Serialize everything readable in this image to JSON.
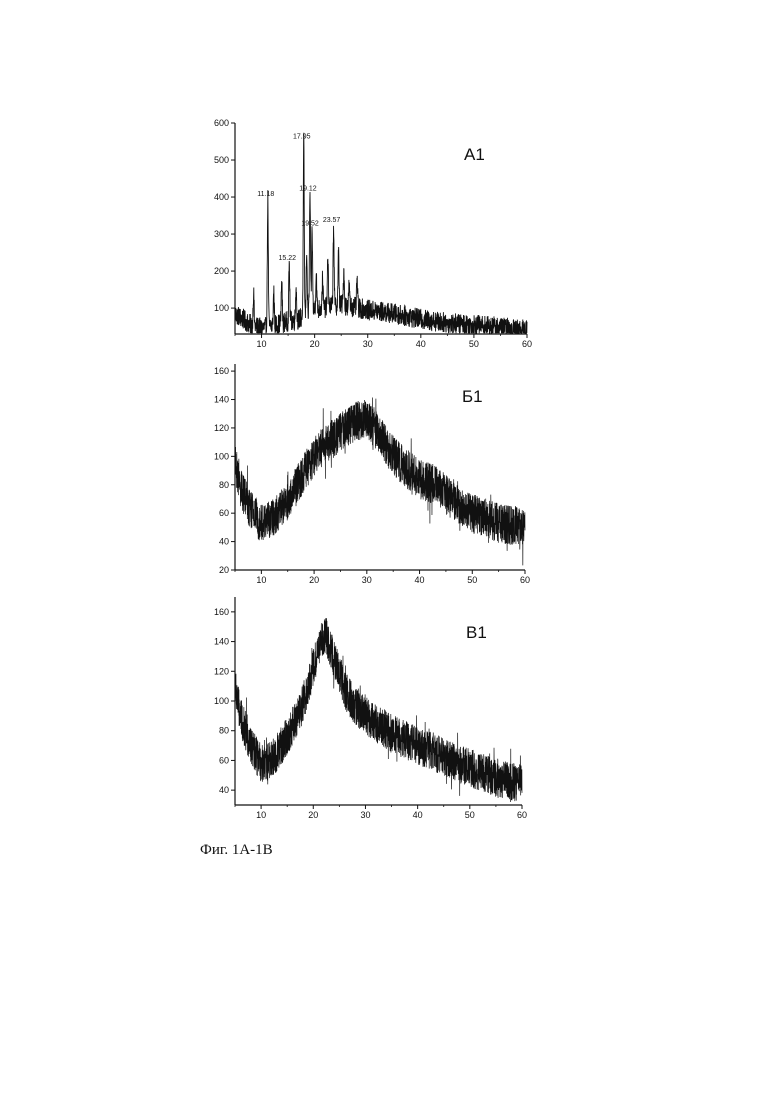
{
  "caption": "Фиг. 1А-1В",
  "chart_data": [
    {
      "type": "line",
      "panel_label": "А1",
      "x_ticks": [
        10,
        20,
        30,
        40,
        50,
        60
      ],
      "y_ticks": [
        100,
        200,
        300,
        400,
        500,
        600
      ],
      "xlim": [
        5,
        60
      ],
      "ylim": [
        30,
        600
      ],
      "grid": false,
      "background_points": [
        [
          5,
          85
        ],
        [
          8,
          55
        ],
        [
          10,
          45
        ],
        [
          14,
          60
        ],
        [
          17,
          70
        ],
        [
          20,
          95
        ],
        [
          25,
          110
        ],
        [
          30,
          95
        ],
        [
          35,
          85
        ],
        [
          40,
          70
        ],
        [
          45,
          60
        ],
        [
          50,
          55
        ],
        [
          55,
          48
        ],
        [
          60,
          40
        ]
      ],
      "noise_amplitude": 28,
      "peaks": [
        {
          "x": 8.5,
          "y": 140
        },
        {
          "x": 11.18,
          "y": 395,
          "label": "11.18"
        },
        {
          "x": 12.3,
          "y": 145
        },
        {
          "x": 13.8,
          "y": 175
        },
        {
          "x": 15.22,
          "y": 222,
          "label": "15.22"
        },
        {
          "x": 16.5,
          "y": 160
        },
        {
          "x": 17.95,
          "y": 550,
          "label": "17.95"
        },
        {
          "x": 18.5,
          "y": 260
        },
        {
          "x": 19.12,
          "y": 410,
          "label": "19.12"
        },
        {
          "x": 19.52,
          "y": 315,
          "label": "19.52"
        },
        {
          "x": 20.3,
          "y": 200
        },
        {
          "x": 21.5,
          "y": 180
        },
        {
          "x": 22.5,
          "y": 240
        },
        {
          "x": 23.57,
          "y": 325,
          "label": "23.57"
        },
        {
          "x": 24.5,
          "y": 250
        },
        {
          "x": 25.5,
          "y": 205
        },
        {
          "x": 26.5,
          "y": 160
        },
        {
          "x": 28.0,
          "y": 178
        }
      ]
    },
    {
      "type": "line",
      "panel_label": "Б1",
      "x_ticks": [
        10,
        20,
        30,
        40,
        50,
        60
      ],
      "y_ticks": [
        20,
        40,
        60,
        80,
        100,
        120,
        140,
        160
      ],
      "xlim": [
        5,
        60
      ],
      "ylim": [
        20,
        165
      ],
      "grid": false,
      "envelope_points": [
        [
          5,
          95
        ],
        [
          6,
          78
        ],
        [
          8,
          62
        ],
        [
          10,
          53
        ],
        [
          12,
          56
        ],
        [
          15,
          68
        ],
        [
          18,
          88
        ],
        [
          20,
          100
        ],
        [
          22,
          108
        ],
        [
          25,
          118
        ],
        [
          28,
          125
        ],
        [
          30,
          126
        ],
        [
          32,
          118
        ],
        [
          35,
          100
        ],
        [
          38,
          90
        ],
        [
          40,
          84
        ],
        [
          43,
          80
        ],
        [
          46,
          70
        ],
        [
          50,
          60
        ],
        [
          55,
          53
        ],
        [
          60,
          50
        ]
      ],
      "noise_amplitude": 14
    },
    {
      "type": "line",
      "panel_label": "В1",
      "x_ticks": [
        10,
        20,
        30,
        40,
        50,
        60
      ],
      "y_ticks": [
        40,
        60,
        80,
        100,
        120,
        140,
        160
      ],
      "xlim": [
        5,
        60
      ],
      "ylim": [
        30,
        170
      ],
      "grid": false,
      "envelope_points": [
        [
          5,
          110
        ],
        [
          6,
          90
        ],
        [
          8,
          70
        ],
        [
          10,
          58
        ],
        [
          12,
          60
        ],
        [
          15,
          76
        ],
        [
          18,
          98
        ],
        [
          20,
          122
        ],
        [
          21.5,
          142
        ],
        [
          22.5,
          144
        ],
        [
          24,
          128
        ],
        [
          26,
          108
        ],
        [
          28,
          96
        ],
        [
          30,
          90
        ],
        [
          35,
          78
        ],
        [
          40,
          70
        ],
        [
          43,
          66
        ],
        [
          46,
          60
        ],
        [
          50,
          55
        ],
        [
          55,
          48
        ],
        [
          60,
          44
        ]
      ],
      "noise_amplitude": 13
    }
  ]
}
